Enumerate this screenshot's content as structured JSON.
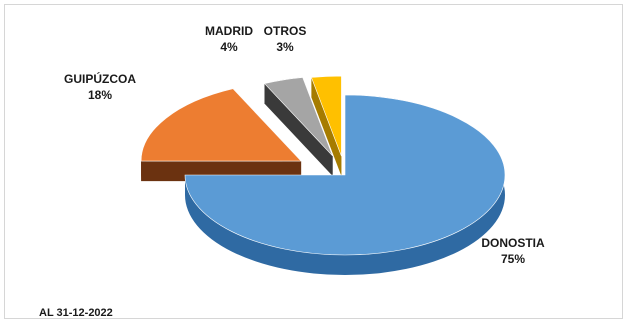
{
  "chart_data": {
    "type": "pie",
    "style": "3d-exploded",
    "slices": [
      {
        "label": "DONOSTIA",
        "value": 75,
        "value_label": "75%",
        "color": "#5b9bd5",
        "side_color": "#2f6aa3"
      },
      {
        "label": "GUIPÚZCOA",
        "value": 18,
        "value_label": "18%",
        "color": "#ed7d31",
        "side_color": "#6b3210"
      },
      {
        "label": "MADRID",
        "value": 4,
        "value_label": "4%",
        "color": "#a5a5a5",
        "side_color": "#3a3a3a"
      },
      {
        "label": "OTROS",
        "value": 3,
        "value_label": "3%",
        "color": "#ffc000",
        "side_color": "#a67c00"
      }
    ]
  },
  "footnote": "AL 31-12-2022"
}
